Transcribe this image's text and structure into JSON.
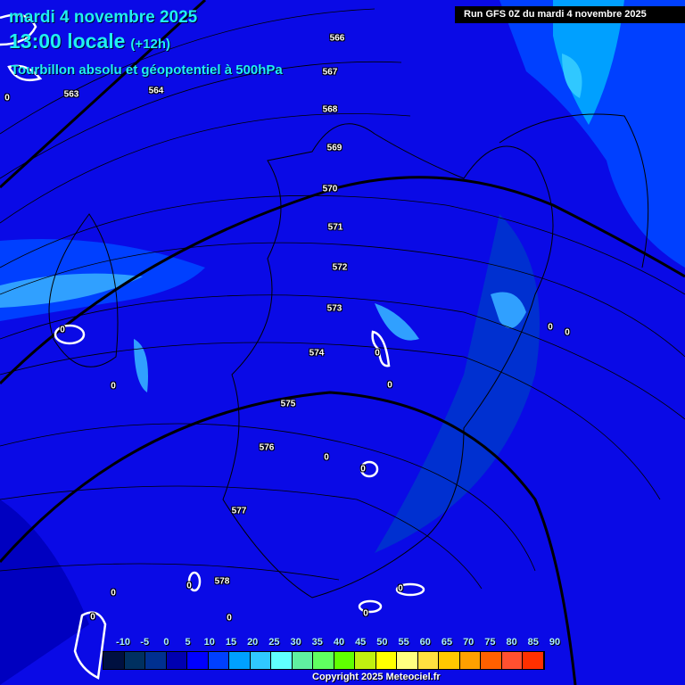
{
  "header": {
    "date": "mardi 4 novembre 2025",
    "time": "13:00 locale",
    "lead": "(+12h)",
    "parameter": "Tourbillon absolu et géopotentiel à 500hPa",
    "run": "Run GFS 0Z du mardi 4 novembre 2025"
  },
  "contours": [
    "563",
    "564",
    "566",
    "567",
    "568",
    "569",
    "570",
    "571",
    "572",
    "573",
    "574",
    "575",
    "576",
    "577",
    "578"
  ],
  "zero_labels": [
    "0",
    "0",
    "0",
    "0",
    "0",
    "0",
    "0",
    "0",
    "0",
    "0",
    "0",
    "0",
    "0",
    "0",
    "0"
  ],
  "legend": {
    "labels": [
      "-10",
      "-5",
      "0",
      "5",
      "10",
      "15",
      "20",
      "25",
      "30",
      "35",
      "40",
      "45",
      "50",
      "55",
      "60",
      "65",
      "70",
      "75",
      "80",
      "85",
      "90"
    ],
    "colors": [
      "#001040",
      "#003060",
      "#003090",
      "#0000b0",
      "#0000ff",
      "#0040ff",
      "#00a0ff",
      "#30c8ff",
      "#60ffff",
      "#60f0a0",
      "#60ff60",
      "#60ff00",
      "#c0f010",
      "#ffff00",
      "#ffff80",
      "#ffe040",
      "#ffc800",
      "#ffa000",
      "#ff6000",
      "#ff5030",
      "#ff3000"
    ]
  },
  "copyright": "Copyright 2025 Meteociel.fr"
}
